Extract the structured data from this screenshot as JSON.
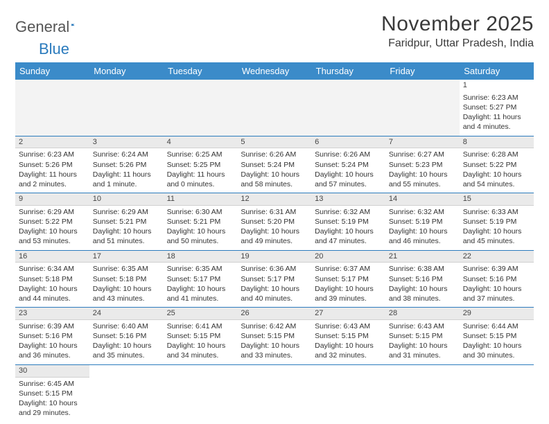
{
  "logo": {
    "text1": "General",
    "text2": "Blue"
  },
  "title": "November 2025",
  "location": "Faridpur, Uttar Pradesh, India",
  "colors": {
    "header_bg": "#3b8bc9",
    "header_text": "#ffffff",
    "border": "#2b7bbd",
    "daynum_bg": "#eaeaea",
    "text": "#333333",
    "logo_blue": "#2b7bbd"
  },
  "weekdays": [
    "Sunday",
    "Monday",
    "Tuesday",
    "Wednesday",
    "Thursday",
    "Friday",
    "Saturday"
  ],
  "weeks": [
    [
      null,
      null,
      null,
      null,
      null,
      null,
      {
        "n": "1",
        "sunrise": "6:23 AM",
        "sunset": "5:27 PM",
        "daylight": "11 hours and 4 minutes."
      }
    ],
    [
      {
        "n": "2",
        "sunrise": "6:23 AM",
        "sunset": "5:26 PM",
        "daylight": "11 hours and 2 minutes."
      },
      {
        "n": "3",
        "sunrise": "6:24 AM",
        "sunset": "5:26 PM",
        "daylight": "11 hours and 1 minute."
      },
      {
        "n": "4",
        "sunrise": "6:25 AM",
        "sunset": "5:25 PM",
        "daylight": "11 hours and 0 minutes."
      },
      {
        "n": "5",
        "sunrise": "6:26 AM",
        "sunset": "5:24 PM",
        "daylight": "10 hours and 58 minutes."
      },
      {
        "n": "6",
        "sunrise": "6:26 AM",
        "sunset": "5:24 PM",
        "daylight": "10 hours and 57 minutes."
      },
      {
        "n": "7",
        "sunrise": "6:27 AM",
        "sunset": "5:23 PM",
        "daylight": "10 hours and 55 minutes."
      },
      {
        "n": "8",
        "sunrise": "6:28 AM",
        "sunset": "5:22 PM",
        "daylight": "10 hours and 54 minutes."
      }
    ],
    [
      {
        "n": "9",
        "sunrise": "6:29 AM",
        "sunset": "5:22 PM",
        "daylight": "10 hours and 53 minutes."
      },
      {
        "n": "10",
        "sunrise": "6:29 AM",
        "sunset": "5:21 PM",
        "daylight": "10 hours and 51 minutes."
      },
      {
        "n": "11",
        "sunrise": "6:30 AM",
        "sunset": "5:21 PM",
        "daylight": "10 hours and 50 minutes."
      },
      {
        "n": "12",
        "sunrise": "6:31 AM",
        "sunset": "5:20 PM",
        "daylight": "10 hours and 49 minutes."
      },
      {
        "n": "13",
        "sunrise": "6:32 AM",
        "sunset": "5:19 PM",
        "daylight": "10 hours and 47 minutes."
      },
      {
        "n": "14",
        "sunrise": "6:32 AM",
        "sunset": "5:19 PM",
        "daylight": "10 hours and 46 minutes."
      },
      {
        "n": "15",
        "sunrise": "6:33 AM",
        "sunset": "5:19 PM",
        "daylight": "10 hours and 45 minutes."
      }
    ],
    [
      {
        "n": "16",
        "sunrise": "6:34 AM",
        "sunset": "5:18 PM",
        "daylight": "10 hours and 44 minutes."
      },
      {
        "n": "17",
        "sunrise": "6:35 AM",
        "sunset": "5:18 PM",
        "daylight": "10 hours and 43 minutes."
      },
      {
        "n": "18",
        "sunrise": "6:35 AM",
        "sunset": "5:17 PM",
        "daylight": "10 hours and 41 minutes."
      },
      {
        "n": "19",
        "sunrise": "6:36 AM",
        "sunset": "5:17 PM",
        "daylight": "10 hours and 40 minutes."
      },
      {
        "n": "20",
        "sunrise": "6:37 AM",
        "sunset": "5:17 PM",
        "daylight": "10 hours and 39 minutes."
      },
      {
        "n": "21",
        "sunrise": "6:38 AM",
        "sunset": "5:16 PM",
        "daylight": "10 hours and 38 minutes."
      },
      {
        "n": "22",
        "sunrise": "6:39 AM",
        "sunset": "5:16 PM",
        "daylight": "10 hours and 37 minutes."
      }
    ],
    [
      {
        "n": "23",
        "sunrise": "6:39 AM",
        "sunset": "5:16 PM",
        "daylight": "10 hours and 36 minutes."
      },
      {
        "n": "24",
        "sunrise": "6:40 AM",
        "sunset": "5:16 PM",
        "daylight": "10 hours and 35 minutes."
      },
      {
        "n": "25",
        "sunrise": "6:41 AM",
        "sunset": "5:15 PM",
        "daylight": "10 hours and 34 minutes."
      },
      {
        "n": "26",
        "sunrise": "6:42 AM",
        "sunset": "5:15 PM",
        "daylight": "10 hours and 33 minutes."
      },
      {
        "n": "27",
        "sunrise": "6:43 AM",
        "sunset": "5:15 PM",
        "daylight": "10 hours and 32 minutes."
      },
      {
        "n": "28",
        "sunrise": "6:43 AM",
        "sunset": "5:15 PM",
        "daylight": "10 hours and 31 minutes."
      },
      {
        "n": "29",
        "sunrise": "6:44 AM",
        "sunset": "5:15 PM",
        "daylight": "10 hours and 30 minutes."
      }
    ],
    [
      {
        "n": "30",
        "sunrise": "6:45 AM",
        "sunset": "5:15 PM",
        "daylight": "10 hours and 29 minutes."
      },
      null,
      null,
      null,
      null,
      null,
      null
    ]
  ],
  "labels": {
    "sunrise": "Sunrise: ",
    "sunset": "Sunset: ",
    "daylight": "Daylight: "
  }
}
